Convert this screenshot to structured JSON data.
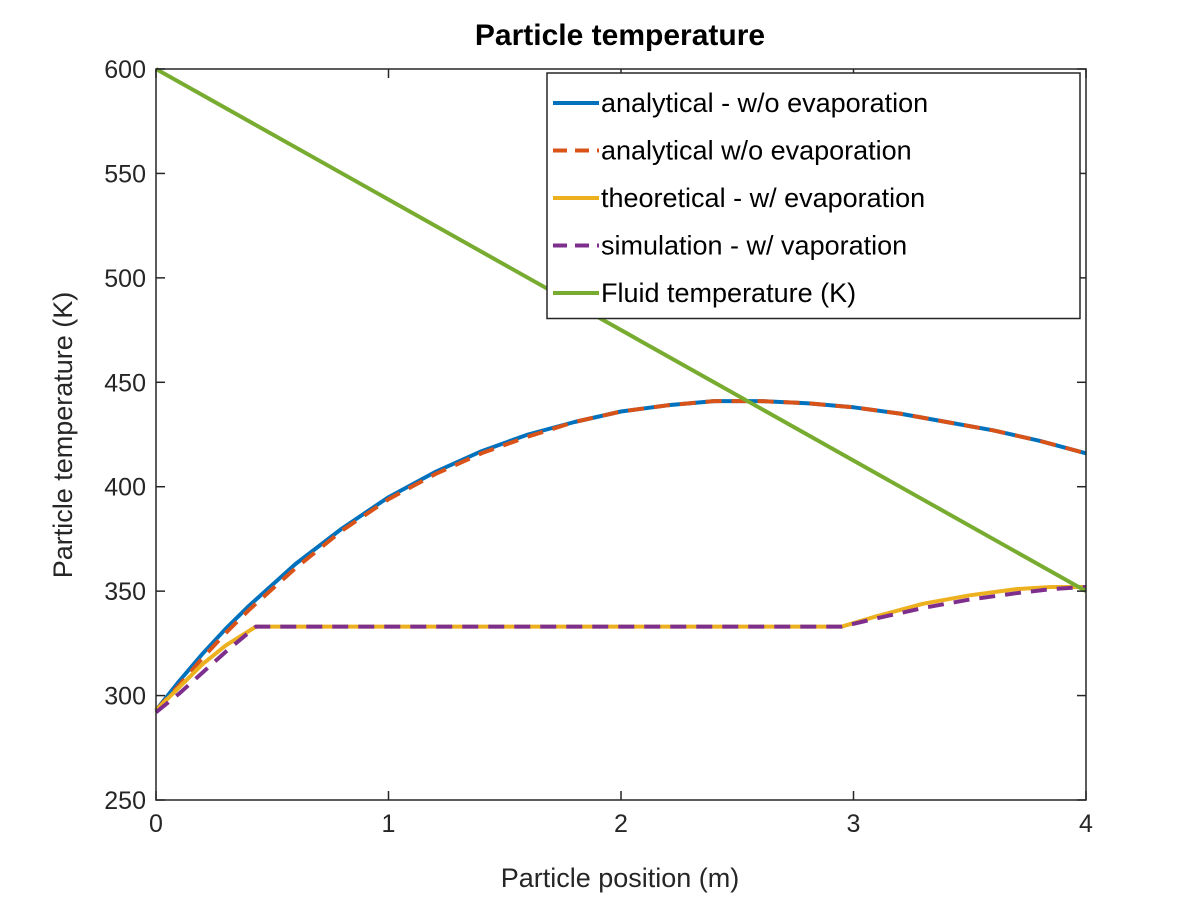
{
  "chart_data": {
    "type": "line",
    "title": "Particle temperature",
    "xlabel": "Particle position (m)",
    "ylabel": "Particle temperature (K)",
    "xlim": [
      0,
      4
    ],
    "ylim": [
      250,
      600
    ],
    "xticks": [
      "0",
      "1",
      "2",
      "3",
      "4"
    ],
    "yticks": [
      "250",
      "300",
      "350",
      "400",
      "450",
      "500",
      "550",
      "600"
    ],
    "grid": false,
    "legend_position": "top-right",
    "series": [
      {
        "name": "analytical - w/o evaporation",
        "color": "#0072BD",
        "dash": "solid",
        "x": [
          0,
          0.1,
          0.2,
          0.3,
          0.4,
          0.6,
          0.8,
          1.0,
          1.2,
          1.4,
          1.6,
          1.8,
          2.0,
          2.2,
          2.4,
          2.6,
          2.8,
          3.0,
          3.2,
          3.4,
          3.6,
          3.8,
          4.0
        ],
        "y": [
          293,
          307,
          320,
          332,
          343,
          363,
          380,
          395,
          407,
          417,
          425,
          431,
          436,
          439,
          441,
          441,
          440,
          438,
          435,
          431,
          427,
          422,
          416
        ]
      },
      {
        "name": "analytical w/o evaporation",
        "color": "#D95319",
        "dash": "dashed",
        "x": [
          0,
          0.1,
          0.2,
          0.3,
          0.4,
          0.6,
          0.8,
          1.0,
          1.2,
          1.4,
          1.6,
          1.8,
          2.0,
          2.2,
          2.4,
          2.6,
          2.8,
          3.0,
          3.2,
          3.4,
          3.6,
          3.8,
          4.0
        ],
        "y": [
          293,
          305,
          318,
          330,
          341,
          361,
          379,
          394,
          406,
          416,
          424,
          431,
          436,
          439,
          441,
          441,
          440,
          438,
          435,
          431,
          427,
          422,
          416
        ]
      },
      {
        "name": "theoretical - w/ evaporation",
        "color": "#EDB120",
        "dash": "solid",
        "x": [
          0,
          0.1,
          0.2,
          0.3,
          0.43,
          1.0,
          2.0,
          2.95,
          3.1,
          3.3,
          3.5,
          3.7,
          3.85,
          4.0
        ],
        "y": [
          293,
          304,
          315,
          324,
          333,
          333,
          333,
          333,
          338,
          344,
          348,
          351,
          352,
          352
        ]
      },
      {
        "name": "simulation - w/ vaporation",
        "color": "#7E2F8E",
        "dash": "dashed",
        "x": [
          0,
          0.1,
          0.2,
          0.3,
          0.43,
          1.0,
          2.0,
          2.95,
          3.1,
          3.3,
          3.5,
          3.7,
          3.85,
          4.0
        ],
        "y": [
          292,
          301,
          311,
          321,
          333,
          333,
          333,
          333,
          337,
          342,
          346,
          349,
          351,
          352
        ]
      },
      {
        "name": "Fluid temperature (K)",
        "color": "#77AC30",
        "dash": "solid",
        "x": [
          0,
          4
        ],
        "y": [
          600,
          350
        ]
      }
    ]
  }
}
